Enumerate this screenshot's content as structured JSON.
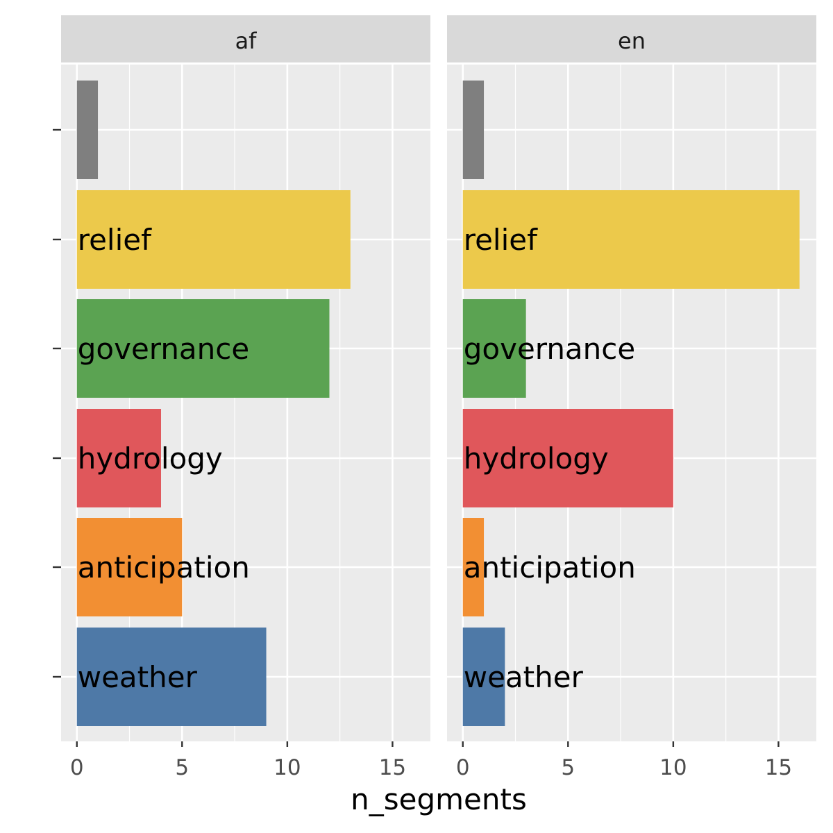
{
  "chart_data": {
    "type": "bar",
    "orientation": "horizontal",
    "xlabel": "n_segments",
    "ylabel": "",
    "xlim": [
      -0.75,
      16.8
    ],
    "x_ticks": [
      0,
      5,
      10,
      15
    ],
    "grid": true,
    "legend": "none",
    "categories": [
      "",
      "relief",
      "governance",
      "hydrology",
      "anticipation",
      "weather"
    ],
    "category_colors": [
      "#7f7f7f",
      "#ecc94b",
      "#5ba352",
      "#e0575b",
      "#f28f33",
      "#4e79a7"
    ],
    "facets": [
      {
        "label": "af",
        "values": [
          1,
          13,
          12,
          4,
          5,
          9
        ]
      },
      {
        "label": "en",
        "values": [
          1,
          16,
          3,
          10,
          1,
          2
        ]
      }
    ]
  }
}
